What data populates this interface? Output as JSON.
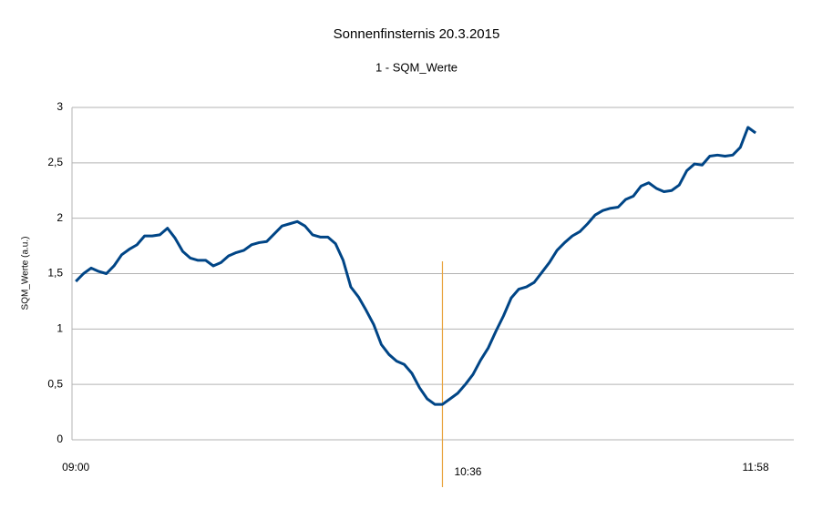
{
  "chart_data": {
    "type": "line",
    "title": "Sonnenfinsternis 20.3.2015",
    "subtitle": "1 - SQM_Werte",
    "ylabel": "SQM_Werte (a.u.)",
    "x": [
      "09:00",
      "09:02",
      "09:04",
      "09:06",
      "09:08",
      "09:10",
      "09:12",
      "09:14",
      "09:16",
      "09:18",
      "09:20",
      "09:22",
      "09:24",
      "09:26",
      "09:28",
      "09:30",
      "09:32",
      "09:34",
      "09:36",
      "09:38",
      "09:40",
      "09:42",
      "09:44",
      "09:46",
      "09:48",
      "09:50",
      "09:52",
      "09:54",
      "09:56",
      "09:58",
      "10:00",
      "10:02",
      "10:04",
      "10:06",
      "10:08",
      "10:10",
      "10:12",
      "10:14",
      "10:16",
      "10:18",
      "10:20",
      "10:22",
      "10:24",
      "10:26",
      "10:28",
      "10:30",
      "10:32",
      "10:34",
      "10:36",
      "10:38",
      "10:40",
      "10:42",
      "10:44",
      "10:46",
      "10:48",
      "10:50",
      "10:52",
      "10:54",
      "10:56",
      "10:58",
      "11:00",
      "11:02",
      "11:04",
      "11:06",
      "11:08",
      "11:10",
      "11:12",
      "11:14",
      "11:16",
      "11:18",
      "11:20",
      "11:22",
      "11:24",
      "11:26",
      "11:28",
      "11:30",
      "11:32",
      "11:34",
      "11:36",
      "11:38",
      "11:40",
      "11:42",
      "11:44",
      "11:46",
      "11:48",
      "11:50",
      "11:52",
      "11:54",
      "11:56",
      "11:58"
    ],
    "series": [
      {
        "name": "SQM_Werte",
        "color": "#004586",
        "values": [
          1.43,
          1.5,
          1.55,
          1.52,
          1.5,
          1.57,
          1.67,
          1.72,
          1.76,
          1.84,
          1.84,
          1.85,
          1.91,
          1.82,
          1.7,
          1.64,
          1.62,
          1.62,
          1.57,
          1.6,
          1.66,
          1.69,
          1.71,
          1.76,
          1.78,
          1.79,
          1.86,
          1.93,
          1.95,
          1.97,
          1.93,
          1.85,
          1.83,
          1.83,
          1.77,
          1.62,
          1.38,
          1.29,
          1.17,
          1.04,
          0.86,
          0.77,
          0.71,
          0.68,
          0.6,
          0.47,
          0.37,
          0.32,
          0.32,
          0.37,
          0.42,
          0.5,
          0.59,
          0.72,
          0.83,
          0.98,
          1.12,
          1.28,
          1.36,
          1.38,
          1.42,
          1.51,
          1.6,
          1.71,
          1.78,
          1.84,
          1.88,
          1.95,
          2.03,
          2.07,
          2.09,
          2.1,
          2.17,
          2.2,
          2.29,
          2.32,
          2.27,
          2.24,
          2.25,
          2.3,
          2.43,
          2.49,
          2.48,
          2.56,
          2.57,
          2.56,
          2.57,
          2.64,
          2.82,
          2.77
        ]
      }
    ],
    "xlim": [
      "08:59",
      "12:08"
    ],
    "xticks": [
      "09:00",
      "10:36",
      "11:58"
    ],
    "ylim": [
      0,
      3
    ],
    "yticks": [
      0,
      {
        "value": 0.5,
        "label": "0,5"
      },
      1,
      {
        "value": 1.5,
        "label": "1,5"
      },
      2,
      {
        "value": 2.5,
        "label": "2,5"
      },
      3
    ],
    "grid": true,
    "marker_line": {
      "x": "10:36",
      "color": "#e8a33d"
    }
  }
}
